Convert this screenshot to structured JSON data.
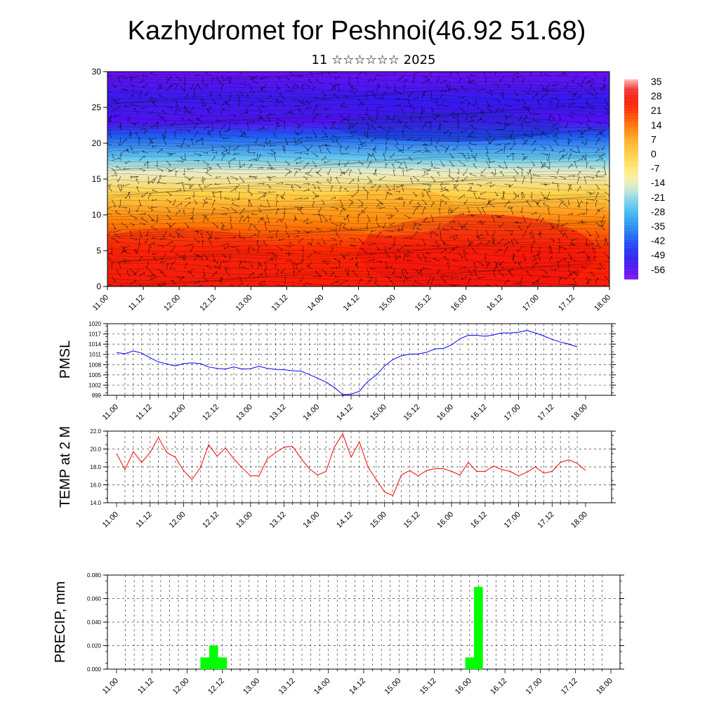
{
  "title": "Kazhydromet for Peshnoi(46.92 51.68)",
  "subtitle": "11 ☆☆☆☆☆☆ 2025",
  "time_labels": [
    "11.00",
    "11.12",
    "12.00",
    "12.12",
    "13.00",
    "13.12",
    "14.00",
    "14.12",
    "15.00",
    "15.12",
    "16.00",
    "16.12",
    "17.00",
    "17.12",
    "18.00"
  ],
  "colors": {
    "pmsl_line": "#0000ff",
    "temp_line": "#ff0000",
    "precip_bar": "#00ff00"
  },
  "colorbar": {
    "labels": [
      "35",
      "28",
      "21",
      "14",
      "7",
      "0",
      "-7",
      "-14",
      "-21",
      "-28",
      "-35",
      "-42",
      "-49",
      "-56"
    ]
  },
  "chart_data": [
    {
      "id": "section",
      "type": "heatmap",
      "title": "Kazhydromet for Peshnoi(46.92 51.68)",
      "subtitle": "11 ☆☆☆☆☆☆ 2025",
      "ylim": [
        0,
        30
      ],
      "yticks": [
        0,
        5,
        10,
        15,
        20,
        25,
        30
      ],
      "xlim": [
        0,
        14
      ],
      "xticks": [
        "11.00",
        "11.12",
        "12.00",
        "12.12",
        "13.00",
        "13.12",
        "14.00",
        "14.12",
        "15.00",
        "15.12",
        "16.00",
        "16.12",
        "17.00",
        "17.12",
        "18.00"
      ],
      "color_levels": [
        35,
        28,
        21,
        14,
        7,
        0,
        -7,
        -14,
        -21,
        -28,
        -35,
        -42,
        -49,
        -56
      ],
      "vertical_profile": [
        {
          "level": 0,
          "value": 28
        },
        {
          "level": 5,
          "value": 24
        },
        {
          "level": 9,
          "value": 14
        },
        {
          "level": 13,
          "value": 0
        },
        {
          "level": 16,
          "value": -14
        },
        {
          "level": 18,
          "value": -24
        },
        {
          "level": 21,
          "value": -40
        },
        {
          "level": 23,
          "value": -55
        },
        {
          "level": 26,
          "value": -50
        },
        {
          "level": 30,
          "value": -58
        }
      ],
      "grid": false
    },
    {
      "id": "pmsl",
      "type": "line",
      "ylabel": "PMSL",
      "ylim": [
        999,
        1020
      ],
      "yticks": [
        999,
        1002,
        1005,
        1008,
        1011,
        1014,
        1017,
        1020
      ],
      "xticks": [
        "11.00",
        "11.12",
        "12.00",
        "12.12",
        "13.00",
        "13.12",
        "14.00",
        "14.12",
        "15.00",
        "15.12",
        "16.00",
        "16.12",
        "17.00",
        "17.12",
        "18.00"
      ],
      "x_step_hours": 3,
      "series": [
        {
          "values": [
            1011.5,
            1011.2,
            1012,
            1011.4,
            1010,
            1008.8,
            1008.2,
            1007.6,
            1008.3,
            1008.5,
            1008.3,
            1007.3,
            1006.9,
            1006.7,
            1007.3,
            1006.7,
            1006.8,
            1007.5,
            1006.9,
            1006.6,
            1006.5,
            1006.2,
            1006.1,
            1005.1,
            1004,
            1002.9,
            1001.3,
            999.2,
            999.3,
            1000.2,
            1003.1,
            1004.9,
            1007.6,
            1009.5,
            1010.6,
            1011.1,
            1011.1,
            1011.6,
            1012.6,
            1012.7,
            1013.8,
            1015.6,
            1016.6,
            1016.6,
            1016.3,
            1016.7,
            1017.3,
            1017.3,
            1017.5,
            1018,
            1017.3,
            1016.4,
            1015.4,
            1014.6,
            1014,
            1013.2
          ]
        }
      ],
      "grid": true
    },
    {
      "id": "temp",
      "type": "line",
      "ylabel": "TEMP at 2 M",
      "ylim": [
        14,
        22
      ],
      "yticks": [
        "14.0",
        "16.0",
        "18.0",
        "20.0",
        "22.0"
      ],
      "xticks": [
        "11.00",
        "11.12",
        "12.00",
        "12.12",
        "13.00",
        "13.12",
        "14.00",
        "14.12",
        "15.00",
        "15.12",
        "16.00",
        "16.12",
        "17.00",
        "17.12",
        "18.00"
      ],
      "x_step_hours": 3,
      "series": [
        {
          "values": [
            19.5,
            17.7,
            19.7,
            18.5,
            19.6,
            21.3,
            19.6,
            19.1,
            17.6,
            16.6,
            17.9,
            20.5,
            19.2,
            20.1,
            18.9,
            17.9,
            17,
            17,
            18.9,
            19.6,
            20.2,
            20.3,
            19,
            17.8,
            17.1,
            17.5,
            20.2,
            21.7,
            19.1,
            20.8,
            18,
            16.6,
            15.2,
            14.8,
            17.1,
            17.6,
            17,
            17.6,
            17.8,
            17.8,
            17.5,
            17.1,
            18.5,
            17.5,
            17.5,
            18.1,
            17.7,
            17.5,
            17,
            17.4,
            18,
            17.3,
            17.5,
            18.5,
            18.8,
            18.4,
            17.6
          ]
        }
      ],
      "grid": true
    },
    {
      "id": "precip",
      "type": "bar",
      "ylabel": "PRECIP, mm",
      "ylim": [
        0,
        0.08
      ],
      "yticks": [
        "0.000",
        "0.020",
        "0.040",
        "0.060",
        "0.080"
      ],
      "xticks": [
        "11.00",
        "11.12",
        "12.00",
        "12.12",
        "13.00",
        "13.12",
        "14.00",
        "14.12",
        "15.00",
        "15.12",
        "16.00",
        "16.12",
        "17.00",
        "17.12",
        "18.00"
      ],
      "x_step_hours": 3,
      "series": [
        {
          "values": [
            0,
            0,
            0,
            0,
            0,
            0,
            0,
            0,
            0,
            0,
            0.01,
            0.02,
            0.01,
            0,
            0,
            0,
            0,
            0,
            0,
            0,
            0,
            0,
            0,
            0,
            0,
            0,
            0,
            0,
            0,
            0,
            0,
            0,
            0,
            0,
            0,
            0,
            0,
            0,
            0,
            0,
            0.01,
            0.07,
            0,
            0,
            0,
            0,
            0,
            0,
            0,
            0,
            0,
            0,
            0,
            0,
            0,
            0
          ]
        }
      ],
      "grid": true
    }
  ]
}
